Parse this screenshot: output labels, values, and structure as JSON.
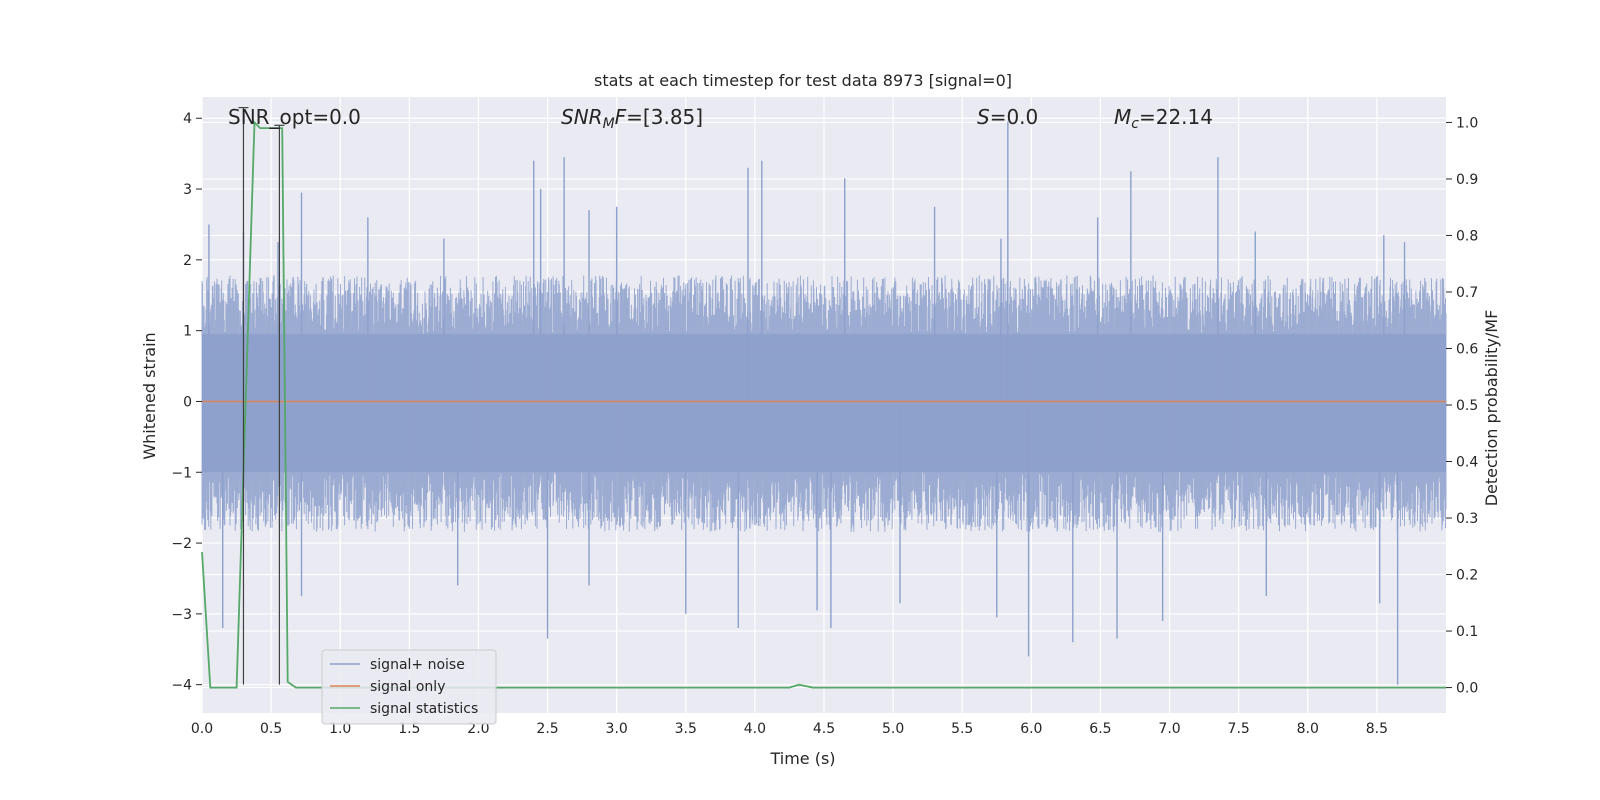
{
  "chart_data": {
    "type": "line",
    "title": "stats at each timestep for test data 8973 [signal=0]",
    "xlabel": "Time (s)",
    "ylabel": "Whitened strain",
    "y2label": "Detection probability/MF",
    "xlim": [
      0.0,
      9.0
    ],
    "ylim": [
      -4.4,
      4.3
    ],
    "y2lim": [
      -0.045,
      1.045
    ],
    "xticks": [
      "0.0",
      "0.5",
      "1.0",
      "1.5",
      "2.0",
      "2.5",
      "3.0",
      "3.5",
      "4.0",
      "4.5",
      "5.0",
      "5.5",
      "6.0",
      "6.5",
      "7.0",
      "7.5",
      "8.0",
      "8.5"
    ],
    "yticks": [
      "4",
      "3",
      "2",
      "1",
      "0",
      "−1",
      "−2",
      "−3",
      "−4"
    ],
    "y2ticks": [
      "1.0",
      "0.9",
      "0.8",
      "0.7",
      "0.6",
      "0.5",
      "0.4",
      "0.3",
      "0.2",
      "0.1",
      "0.0"
    ],
    "annotations": {
      "snr_opt": "SNR_opt=0.0",
      "snr_mf_main": "SNR",
      "snr_mf_sub": "M",
      "snr_mf_italic2": "F",
      "snr_mf_val": "=[3.85]",
      "s_italic": "S",
      "s_val": "=0.0",
      "mc_main": "M",
      "mc_sub": "c",
      "mc_val": "=22.14"
    },
    "legend": {
      "position": "lower-left",
      "entries": [
        "signal+ noise",
        "signal only",
        "signal statistics"
      ]
    },
    "colors": {
      "noise": "#8da0cb",
      "signal": "#dd8452",
      "stats": "#55a868",
      "bg": "#eaeaf2",
      "grid": "#ffffff",
      "marker": "#404040"
    },
    "series": [
      {
        "name": "signal+ noise",
        "description_values": "dense whitened noise, fs 4096 Hz; sampled envelope",
        "band_upper": 1.55,
        "band_lower": -1.6,
        "seed": 8973,
        "spikes": [
          [
            0.05,
            2.5
          ],
          [
            0.3,
            2.4
          ],
          [
            0.55,
            2.25
          ],
          [
            0.72,
            2.95
          ],
          [
            1.2,
            2.6
          ],
          [
            1.75,
            2.3
          ],
          [
            2.4,
            3.4
          ],
          [
            2.45,
            3.0
          ],
          [
            2.62,
            3.45
          ],
          [
            2.8,
            2.7
          ],
          [
            3.0,
            2.75
          ],
          [
            3.95,
            3.3
          ],
          [
            4.05,
            3.4
          ],
          [
            4.65,
            3.15
          ],
          [
            5.3,
            2.75
          ],
          [
            5.78,
            2.3
          ],
          [
            5.83,
            3.95
          ],
          [
            6.48,
            2.6
          ],
          [
            6.72,
            3.25
          ],
          [
            7.35,
            3.45
          ],
          [
            7.62,
            2.4
          ],
          [
            8.55,
            2.35
          ],
          [
            8.7,
            2.25
          ],
          [
            0.15,
            -3.2
          ],
          [
            0.72,
            -2.75
          ],
          [
            2.5,
            -3.35
          ],
          [
            2.8,
            -2.6
          ],
          [
            3.5,
            -3.0
          ],
          [
            3.88,
            -3.2
          ],
          [
            4.45,
            -2.95
          ],
          [
            4.55,
            -3.2
          ],
          [
            5.05,
            -2.85
          ],
          [
            5.75,
            -3.05
          ],
          [
            5.98,
            -3.6
          ],
          [
            6.3,
            -3.4
          ],
          [
            6.62,
            -3.35
          ],
          [
            6.95,
            -3.1
          ],
          [
            7.7,
            -2.75
          ],
          [
            8.52,
            -2.85
          ],
          [
            8.65,
            -4.0
          ],
          [
            1.85,
            -2.6
          ]
        ]
      },
      {
        "name": "signal only",
        "x": [
          0.0,
          9.0
        ],
        "y": [
          0.0,
          0.0
        ]
      },
      {
        "name": "signal statistics",
        "axis": "right",
        "x": [
          0.0,
          0.06,
          0.25,
          0.38,
          0.42,
          0.58,
          0.62,
          0.68,
          4.25,
          4.32,
          4.42,
          9.0
        ],
        "y": [
          0.24,
          0.0,
          0.0,
          1.0,
          0.99,
          0.99,
          0.01,
          0.0,
          0.0,
          0.005,
          0.0,
          0.0
        ]
      }
    ],
    "markers": [
      {
        "x": 0.3,
        "y_top": 4.15,
        "y_bottom": -4.0
      },
      {
        "x": 0.56,
        "y_top": 3.9,
        "y_bottom": -4.0
      }
    ]
  }
}
